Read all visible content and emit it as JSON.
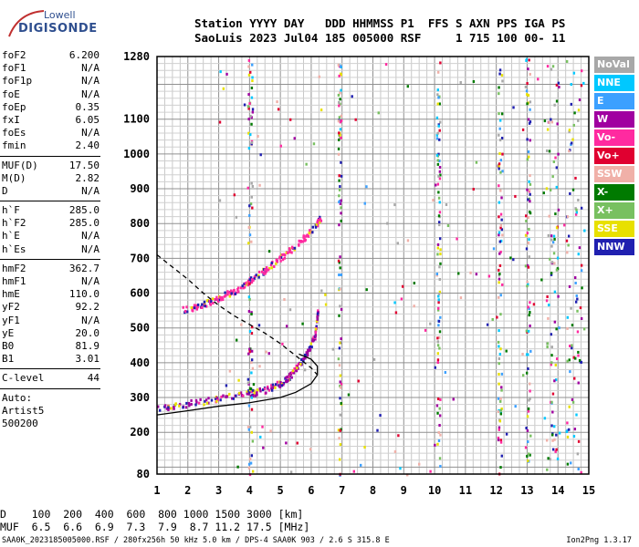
{
  "logo": {
    "line1": "Lowell",
    "line2": "DIGISONDE"
  },
  "header": {
    "line1": "Station YYYY DAY   DDD HHMMSS P1  FFS S AXN PPS IGA PS",
    "line2": "SaoLuis 2023 Jul04 185 005000 RSF     1 715 100 00- 11"
  },
  "params": [
    {
      "name": "foF2",
      "value": "6.200"
    },
    {
      "name": "foF1",
      "value": "N/A"
    },
    {
      "name": "foF1p",
      "value": "N/A"
    },
    {
      "name": "foE",
      "value": "N/A"
    },
    {
      "name": "foEp",
      "value": "0.35"
    },
    {
      "name": "fxI",
      "value": "6.05"
    },
    {
      "name": "foEs",
      "value": "N/A"
    },
    {
      "name": "fmin",
      "value": "2.40"
    },
    {
      "sep": true
    },
    {
      "name": "MUF(D)",
      "value": "17.50"
    },
    {
      "name": "M(D)",
      "value": "2.82"
    },
    {
      "name": "D",
      "value": "N/A"
    },
    {
      "sep": true
    },
    {
      "name": "h`F",
      "value": "285.0"
    },
    {
      "name": "h`F2",
      "value": "285.0"
    },
    {
      "name": "h`E",
      "value": "N/A"
    },
    {
      "name": "h`Es",
      "value": "N/A"
    },
    {
      "sep": true
    },
    {
      "name": "hmF2",
      "value": "362.7"
    },
    {
      "name": "hmF1",
      "value": "N/A"
    },
    {
      "name": "hmE",
      "value": "110.0"
    },
    {
      "name": "yF2",
      "value": "92.2"
    },
    {
      "name": "yF1",
      "value": "N/A"
    },
    {
      "name": "yE",
      "value": "20.0"
    },
    {
      "name": "B0",
      "value": "81.9"
    },
    {
      "name": "B1",
      "value": "3.01"
    },
    {
      "sep": true
    },
    {
      "name": "C-level",
      "value": "44"
    },
    {
      "sep": true
    },
    {
      "text": "Auto:"
    },
    {
      "text": "Artist5"
    },
    {
      "text": "500200"
    }
  ],
  "legend": [
    {
      "label": "NoVal",
      "color": "#a8a8a8"
    },
    {
      "label": "NNE",
      "color": "#00c8ff"
    },
    {
      "label": "E",
      "color": "#3ca0ff"
    },
    {
      "label": "W",
      "color": "#a000a0"
    },
    {
      "label": "Vo-",
      "color": "#ff2aa0"
    },
    {
      "label": "Vo+",
      "color": "#e00030"
    },
    {
      "label": "SSW",
      "color": "#f0b0a8"
    },
    {
      "label": "X-",
      "color": "#007a00"
    },
    {
      "label": "X+",
      "color": "#78c060"
    },
    {
      "label": "SSE",
      "color": "#e8e000"
    },
    {
      "label": "NNW",
      "color": "#2020b0"
    }
  ],
  "bottom": {
    "line1": "D    100  200  400  600  800 1000 1500 3000 [km]",
    "line2": "MUF  6.5  6.6  6.9  7.3  7.9  8.7 11.2 17.5 [MHz]"
  },
  "footer": {
    "left": "SAA0K_2023185005000.RSF / 280fx256h 50 kHz 5.0 km / DPS-4 SAA0K 903 / 2.6 S 315.8 E",
    "right": "Ion2Png 1.3.17"
  },
  "chart_data": {
    "type": "scatter",
    "title": "",
    "xlabel": "",
    "ylabel": "",
    "xlim": [
      1,
      15
    ],
    "ylim": [
      80,
      1280
    ],
    "x_ticks": [
      1,
      2,
      3,
      4,
      5,
      6,
      7,
      8,
      9,
      10,
      11,
      12,
      13,
      14,
      15
    ],
    "y_ticks": [
      80,
      200,
      300,
      400,
      500,
      600,
      700,
      800,
      900,
      1000,
      1100,
      1280
    ],
    "grid": true,
    "series": [
      {
        "color": "#000000",
        "style": "solid",
        "x": [
          1.0,
          2.0,
          3.0,
          4.0,
          5.0,
          5.5,
          6.0,
          6.2,
          6.2,
          6.0,
          5.6
        ],
        "y": [
          250,
          262,
          275,
          285,
          300,
          315,
          340,
          365,
          390,
          410,
          425
        ]
      },
      {
        "color": "#000000",
        "style": "dashed",
        "x": [
          1.0,
          1.5,
          2.0,
          2.5,
          3.0,
          3.5,
          4.0,
          4.5,
          5.0,
          5.5,
          6.0,
          6.2
        ],
        "y": [
          710,
          675,
          640,
          600,
          565,
          535,
          510,
          485,
          455,
          420,
          385,
          365
        ]
      },
      {
        "color": "#a000a0",
        "style": "trace",
        "x": [
          1.0,
          2.0,
          3.0,
          4.0,
          4.5,
          5.0,
          5.3,
          5.6,
          5.9,
          6.1,
          6.2
        ],
        "y": [
          270,
          285,
          300,
          315,
          325,
          345,
          365,
          400,
          440,
          480,
          560
        ]
      },
      {
        "color": "#ff2aa0",
        "style": "trace",
        "x": [
          1.8,
          2.5,
          3.0,
          3.5,
          4.0,
          4.5,
          5.0,
          5.5,
          6.0,
          6.3
        ],
        "y": [
          555,
          570,
          590,
          610,
          640,
          670,
          705,
          740,
          785,
          820
        ]
      }
    ]
  }
}
